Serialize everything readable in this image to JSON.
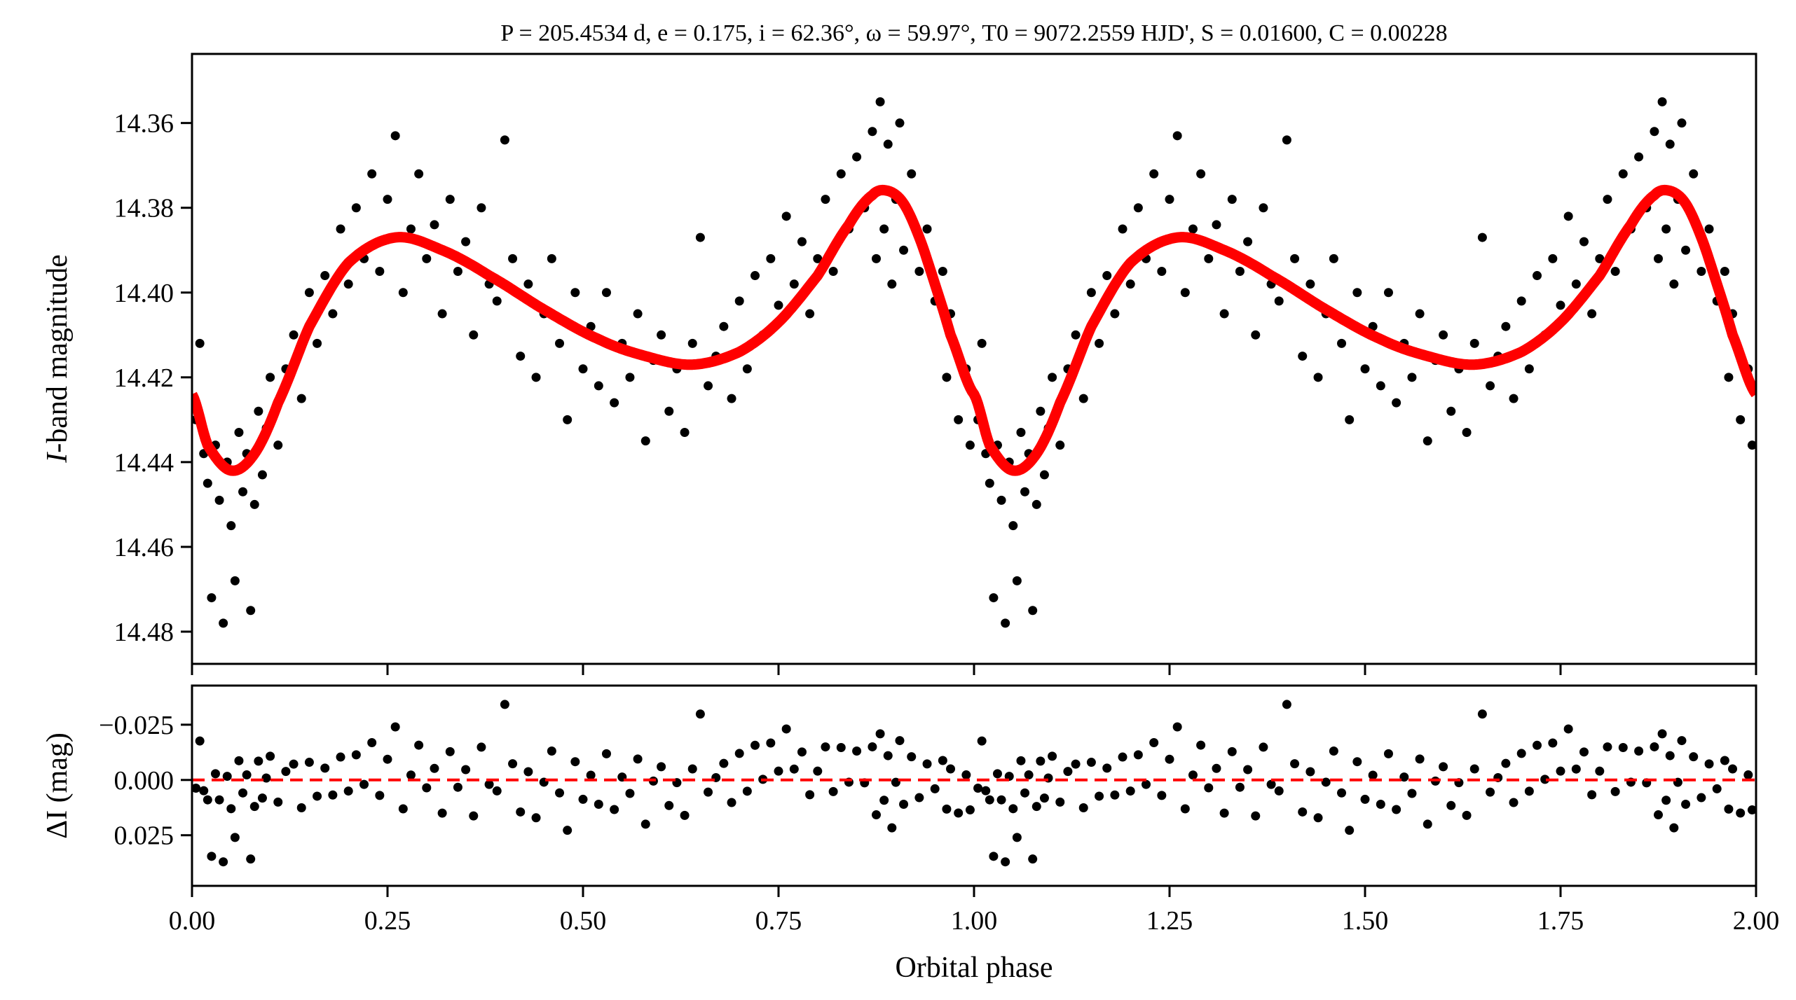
{
  "chart_data": [
    {
      "type": "scatter",
      "panel": "top",
      "title": "P = 205.4534 d, e = 0.175, i = 62.36°, ω = 59.97°, T0 = 9072.2559 HJD', S = 0.01600, C = 0.00228",
      "title_parts": {
        "P": "205.4534 d",
        "e": "0.175",
        "i": "62.36°",
        "omega": "59.97°",
        "T0": "9072.2559 HJD'",
        "S": "0.01600",
        "C": "0.00228"
      },
      "xlabel": "",
      "ylabel": "I-band magnitude",
      "ylabel_italic": "I",
      "ylabel_rest": "-band magnitude",
      "xlim": [
        0,
        2
      ],
      "ylim": [
        14.4876,
        14.3437
      ],
      "y_inverted": true,
      "yticks": [
        "14.36",
        "14.38",
        "14.40",
        "14.42",
        "14.44",
        "14.46",
        "14.48"
      ],
      "xticks": [
        0,
        0.25,
        0.5,
        0.75,
        1.0,
        1.25,
        1.5,
        1.75,
        2.0
      ],
      "grid": false,
      "point_color": "#000000",
      "model_color": "#ff0000",
      "phase_repeat": 2,
      "model_curve": [
        [
          0.0,
          14.424
        ],
        [
          0.02,
          14.436
        ],
        [
          0.05,
          14.442
        ],
        [
          0.08,
          14.438
        ],
        [
          0.11,
          14.426
        ],
        [
          0.15,
          14.408
        ],
        [
          0.2,
          14.393
        ],
        [
          0.26,
          14.387
        ],
        [
          0.32,
          14.39
        ],
        [
          0.38,
          14.396
        ],
        [
          0.45,
          14.404
        ],
        [
          0.52,
          14.411
        ],
        [
          0.58,
          14.415
        ],
        [
          0.64,
          14.417
        ],
        [
          0.7,
          14.414
        ],
        [
          0.75,
          14.407
        ],
        [
          0.8,
          14.396
        ],
        [
          0.84,
          14.384
        ],
        [
          0.87,
          14.377
        ],
        [
          0.89,
          14.376
        ],
        [
          0.91,
          14.379
        ],
        [
          0.93,
          14.387
        ],
        [
          0.95,
          14.398
        ],
        [
          0.97,
          14.41
        ],
        [
          1.0,
          14.424
        ]
      ],
      "observations": [
        [
          0.005,
          14.43
        ],
        [
          0.01,
          14.412
        ],
        [
          0.015,
          14.438
        ],
        [
          0.02,
          14.445
        ],
        [
          0.025,
          14.472
        ],
        [
          0.03,
          14.436
        ],
        [
          0.035,
          14.449
        ],
        [
          0.04,
          14.478
        ],
        [
          0.045,
          14.44
        ],
        [
          0.05,
          14.455
        ],
        [
          0.055,
          14.468
        ],
        [
          0.06,
          14.433
        ],
        [
          0.065,
          14.447
        ],
        [
          0.07,
          14.438
        ],
        [
          0.075,
          14.475
        ],
        [
          0.08,
          14.45
        ],
        [
          0.085,
          14.428
        ],
        [
          0.09,
          14.443
        ],
        [
          0.095,
          14.432
        ],
        [
          0.1,
          14.42
        ],
        [
          0.11,
          14.436
        ],
        [
          0.12,
          14.418
        ],
        [
          0.13,
          14.41
        ],
        [
          0.14,
          14.425
        ],
        [
          0.15,
          14.4
        ],
        [
          0.16,
          14.412
        ],
        [
          0.17,
          14.396
        ],
        [
          0.18,
          14.405
        ],
        [
          0.19,
          14.385
        ],
        [
          0.2,
          14.398
        ],
        [
          0.21,
          14.38
        ],
        [
          0.22,
          14.392
        ],
        [
          0.23,
          14.372
        ],
        [
          0.24,
          14.395
        ],
        [
          0.25,
          14.378
        ],
        [
          0.26,
          14.363
        ],
        [
          0.27,
          14.4
        ],
        [
          0.28,
          14.385
        ],
        [
          0.29,
          14.372
        ],
        [
          0.3,
          14.392
        ],
        [
          0.31,
          14.384
        ],
        [
          0.32,
          14.405
        ],
        [
          0.33,
          14.378
        ],
        [
          0.34,
          14.395
        ],
        [
          0.35,
          14.388
        ],
        [
          0.36,
          14.41
        ],
        [
          0.37,
          14.38
        ],
        [
          0.38,
          14.398
        ],
        [
          0.39,
          14.402
        ],
        [
          0.4,
          14.364
        ],
        [
          0.41,
          14.392
        ],
        [
          0.42,
          14.415
        ],
        [
          0.43,
          14.398
        ],
        [
          0.44,
          14.42
        ],
        [
          0.45,
          14.405
        ],
        [
          0.46,
          14.392
        ],
        [
          0.47,
          14.412
        ],
        [
          0.48,
          14.43
        ],
        [
          0.49,
          14.4
        ],
        [
          0.5,
          14.418
        ],
        [
          0.51,
          14.408
        ],
        [
          0.52,
          14.422
        ],
        [
          0.53,
          14.4
        ],
        [
          0.54,
          14.426
        ],
        [
          0.55,
          14.412
        ],
        [
          0.56,
          14.42
        ],
        [
          0.57,
          14.405
        ],
        [
          0.58,
          14.435
        ],
        [
          0.59,
          14.416
        ],
        [
          0.6,
          14.41
        ],
        [
          0.61,
          14.428
        ],
        [
          0.62,
          14.418
        ],
        [
          0.63,
          14.433
        ],
        [
          0.64,
          14.412
        ],
        [
          0.65,
          14.387
        ],
        [
          0.66,
          14.422
        ],
        [
          0.67,
          14.415
        ],
        [
          0.68,
          14.408
        ],
        [
          0.69,
          14.425
        ],
        [
          0.7,
          14.402
        ],
        [
          0.71,
          14.418
        ],
        [
          0.72,
          14.396
        ],
        [
          0.73,
          14.41
        ],
        [
          0.74,
          14.392
        ],
        [
          0.75,
          14.403
        ],
        [
          0.76,
          14.382
        ],
        [
          0.77,
          14.398
        ],
        [
          0.78,
          14.388
        ],
        [
          0.79,
          14.405
        ],
        [
          0.8,
          14.392
        ],
        [
          0.81,
          14.378
        ],
        [
          0.82,
          14.395
        ],
        [
          0.83,
          14.372
        ],
        [
          0.84,
          14.385
        ],
        [
          0.85,
          14.368
        ],
        [
          0.86,
          14.38
        ],
        [
          0.87,
          14.362
        ],
        [
          0.875,
          14.392
        ],
        [
          0.88,
          14.355
        ],
        [
          0.885,
          14.385
        ],
        [
          0.89,
          14.365
        ],
        [
          0.895,
          14.398
        ],
        [
          0.9,
          14.378
        ],
        [
          0.905,
          14.36
        ],
        [
          0.91,
          14.39
        ],
        [
          0.92,
          14.372
        ],
        [
          0.93,
          14.395
        ],
        [
          0.94,
          14.385
        ],
        [
          0.95,
          14.402
        ],
        [
          0.96,
          14.395
        ],
        [
          0.965,
          14.42
        ],
        [
          0.97,
          14.405
        ],
        [
          0.98,
          14.43
        ],
        [
          0.99,
          14.418
        ],
        [
          0.995,
          14.436
        ]
      ]
    },
    {
      "type": "scatter",
      "panel": "bottom",
      "xlabel": "Orbital phase",
      "ylabel": "ΔI (mag)",
      "ylabel_delta": "Δ",
      "ylabel_italic": "I",
      "ylabel_rest": " (mag)",
      "xlim": [
        0,
        2
      ],
      "ylim": [
        0.0479,
        -0.0427
      ],
      "y_inverted": true,
      "yticks": [
        {
          "value": -0.025,
          "label": "−0.025"
        },
        {
          "value": 0,
          "label": "0.000"
        },
        {
          "value": 0.025,
          "label": "0.025"
        }
      ],
      "xticks": [
        {
          "value": 0,
          "label": "0.00"
        },
        {
          "value": 0.25,
          "label": "0.25"
        },
        {
          "value": 0.5,
          "label": "0.50"
        },
        {
          "value": 0.75,
          "label": "0.75"
        },
        {
          "value": 1.0,
          "label": "1.00"
        },
        {
          "value": 1.25,
          "label": "1.25"
        },
        {
          "value": 1.5,
          "label": "1.50"
        },
        {
          "value": 1.75,
          "label": "1.75"
        },
        {
          "value": 2.0,
          "label": "2.00"
        }
      ],
      "residuals": "observations minus model",
      "zero_line": {
        "value": 0,
        "style": "dashed",
        "color": "#ff0000"
      }
    }
  ]
}
